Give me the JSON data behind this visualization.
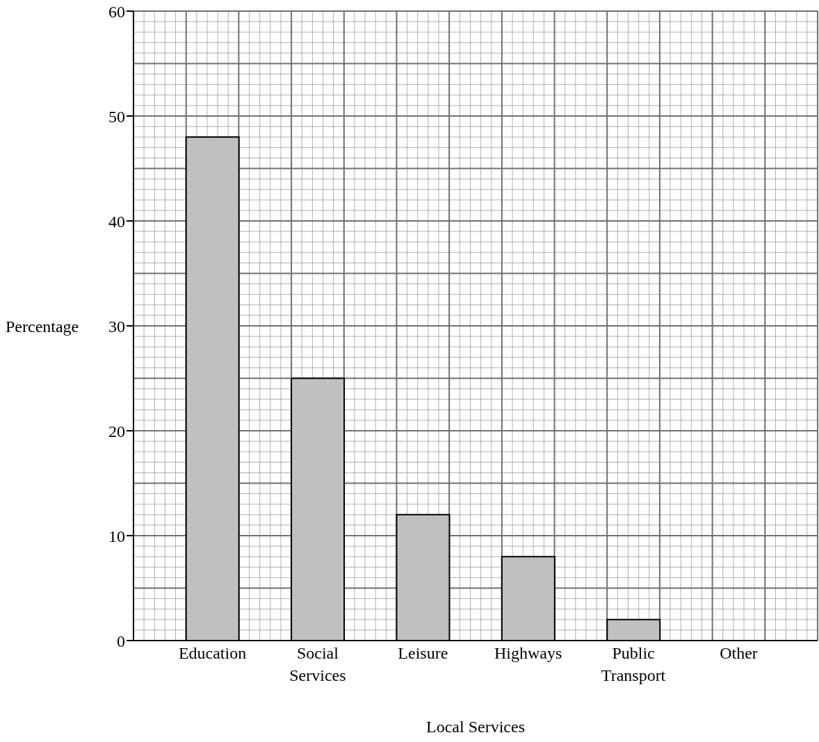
{
  "chart_data": {
    "type": "bar",
    "categories": [
      "Education",
      "Social Services",
      "Leisure",
      "Highways",
      "Public Transport",
      "Other"
    ],
    "values": [
      48,
      25,
      12,
      8,
      2,
      null
    ],
    "color": "#c0c0c0",
    "xlabel": "Local Services",
    "ylabel": "Percentage",
    "ylim": [
      0,
      60
    ],
    "yticks": [
      0,
      10,
      20,
      30,
      40,
      50,
      60
    ],
    "grid": true
  }
}
